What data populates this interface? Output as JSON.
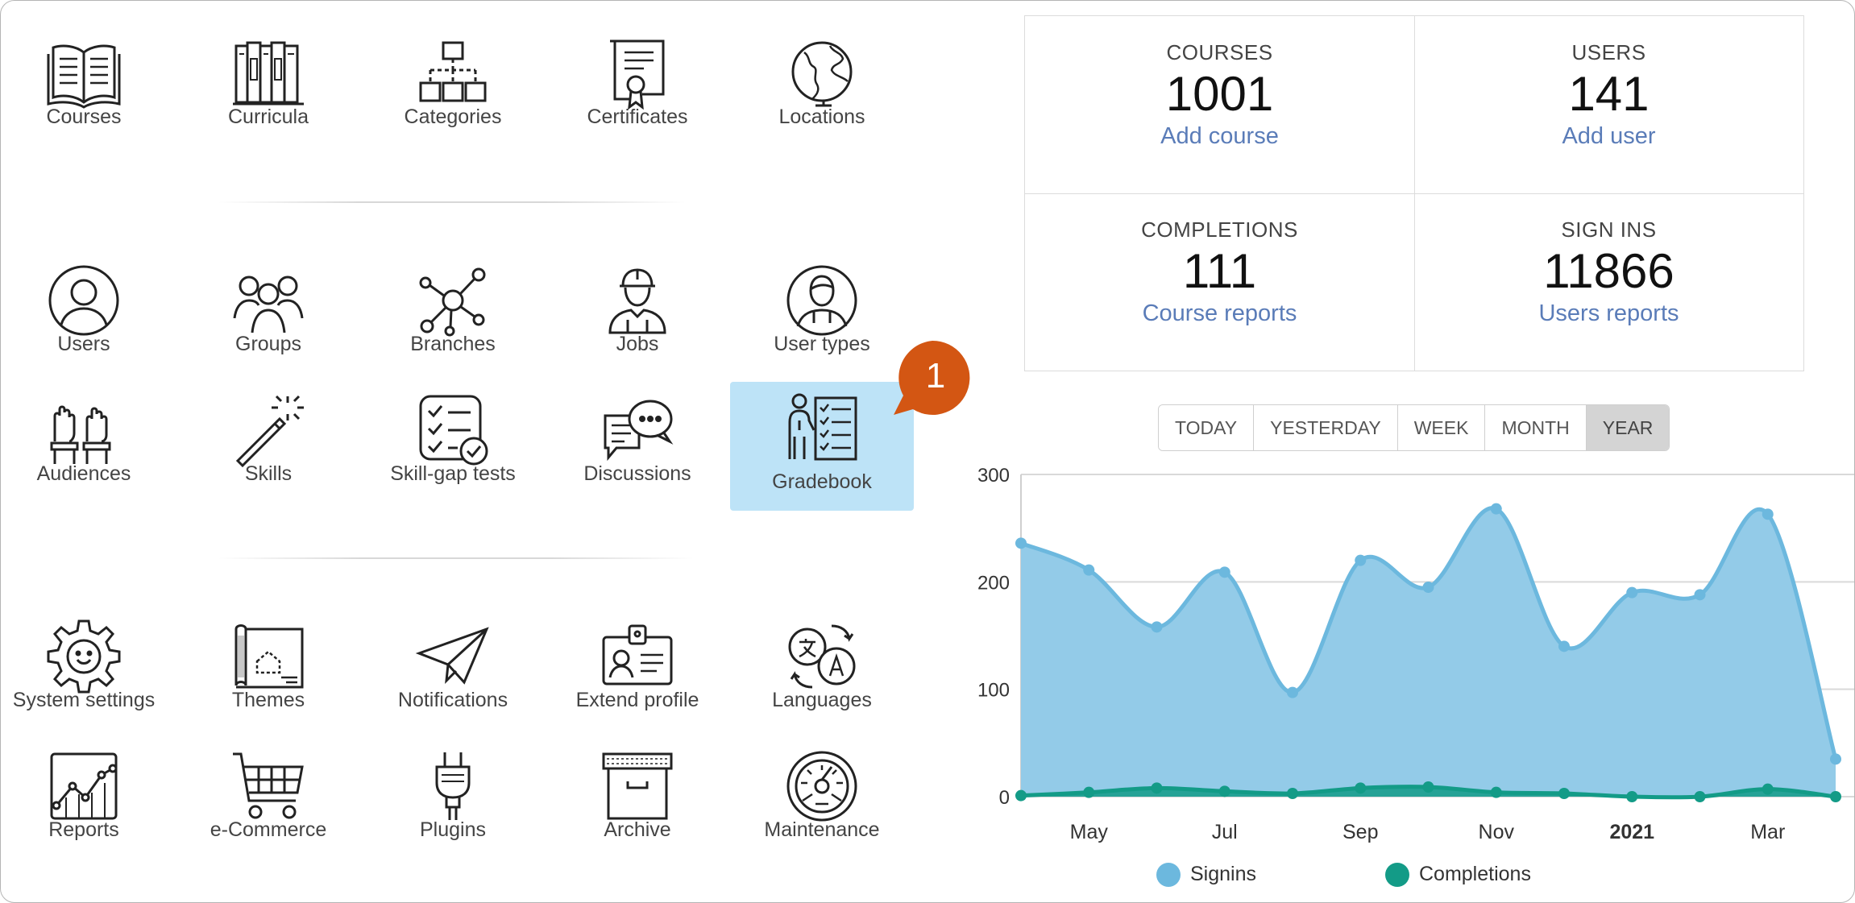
{
  "menu": {
    "row1": [
      {
        "label": "Courses",
        "icon": "open-book-icon",
        "name": "courses"
      },
      {
        "label": "Curricula",
        "icon": "bookshelf-icon",
        "name": "curricula"
      },
      {
        "label": "Categories",
        "icon": "hierarchy-boxes-icon",
        "name": "categories"
      },
      {
        "label": "Certificates",
        "icon": "certificate-scroll-icon",
        "name": "certificates"
      },
      {
        "label": "Locations",
        "icon": "globe-icon",
        "name": "locations"
      }
    ],
    "row2": [
      {
        "label": "Users",
        "icon": "user-circle-icon",
        "name": "users"
      },
      {
        "label": "Groups",
        "icon": "group-people-icon",
        "name": "groups"
      },
      {
        "label": "Branches",
        "icon": "network-nodes-icon",
        "name": "branches"
      },
      {
        "label": "Jobs",
        "icon": "worker-hardhat-icon",
        "name": "jobs"
      },
      {
        "label": "User types",
        "icon": "user-type-circle-icon",
        "name": "user-types"
      }
    ],
    "row3": [
      {
        "label": "Audiences",
        "icon": "raised-hands-icon",
        "name": "audiences"
      },
      {
        "label": "Skills",
        "icon": "magic-wand-icon",
        "name": "skills"
      },
      {
        "label": "Skill-gap tests",
        "icon": "checklist-icon",
        "name": "skill-gap-tests"
      },
      {
        "label": "Discussions",
        "icon": "chat-bubbles-icon",
        "name": "discussions"
      },
      {
        "label": "Gradebook",
        "icon": "teacher-board-icon",
        "name": "gradebook"
      }
    ],
    "row4": [
      {
        "label": "System settings",
        "icon": "gear-smile-icon",
        "name": "system-settings"
      },
      {
        "label": "Themes",
        "icon": "blueprint-icon",
        "name": "themes"
      },
      {
        "label": "Notifications",
        "icon": "paper-plane-icon",
        "name": "notifications"
      },
      {
        "label": "Extend profile",
        "icon": "id-badge-icon",
        "name": "extend-profile"
      },
      {
        "label": "Languages",
        "icon": "translate-icon",
        "name": "languages"
      }
    ],
    "row5": [
      {
        "label": "Reports",
        "icon": "line-chart-icon",
        "name": "reports"
      },
      {
        "label": "e-Commerce",
        "icon": "shopping-cart-icon",
        "name": "e-commerce"
      },
      {
        "label": "Plugins",
        "icon": "plug-icon",
        "name": "plugins"
      },
      {
        "label": "Archive",
        "icon": "archive-box-icon",
        "name": "archive"
      },
      {
        "label": "Maintenance",
        "icon": "dial-gauge-icon",
        "name": "maintenance"
      }
    ]
  },
  "badge": {
    "number": "1",
    "color": "#d35613"
  },
  "stats": {
    "courses": {
      "caption": "COURSES",
      "value": "1001",
      "link": "Add course"
    },
    "users": {
      "caption": "USERS",
      "value": "141",
      "link": "Add user"
    },
    "completions": {
      "caption": "COMPLETIONS",
      "value": "111",
      "link": "Course reports"
    },
    "signins": {
      "caption": "SIGN INS",
      "value": "11866",
      "link": "Users reports"
    }
  },
  "periods": {
    "today": "TODAY",
    "yesterday": "YESTERDAY",
    "week": "WEEK",
    "month": "MONTH",
    "year": "YEAR",
    "selected": "YEAR"
  },
  "colors": {
    "signins": "#6cb8de",
    "signins_fill": "#93cbe8",
    "completions": "#139b87",
    "active_tile": "#bde3f7",
    "link": "#5a7cb8"
  },
  "chart_data": {
    "type": "area",
    "x_tick_labels": [
      "May",
      "Jul",
      "Sep",
      "Nov",
      "2021",
      "Mar"
    ],
    "y_ticks": [
      0,
      100,
      200,
      300
    ],
    "ylim": [
      0,
      300
    ],
    "series": [
      {
        "name": "Signins",
        "values": [
          236,
          211,
          158,
          209,
          97,
          220,
          195,
          268,
          140,
          190,
          188,
          263,
          35
        ]
      },
      {
        "name": "Completions",
        "values": [
          1,
          4,
          8,
          5,
          3,
          8,
          9,
          4,
          3,
          0,
          0,
          7,
          0
        ]
      }
    ],
    "legend": "bottom"
  }
}
